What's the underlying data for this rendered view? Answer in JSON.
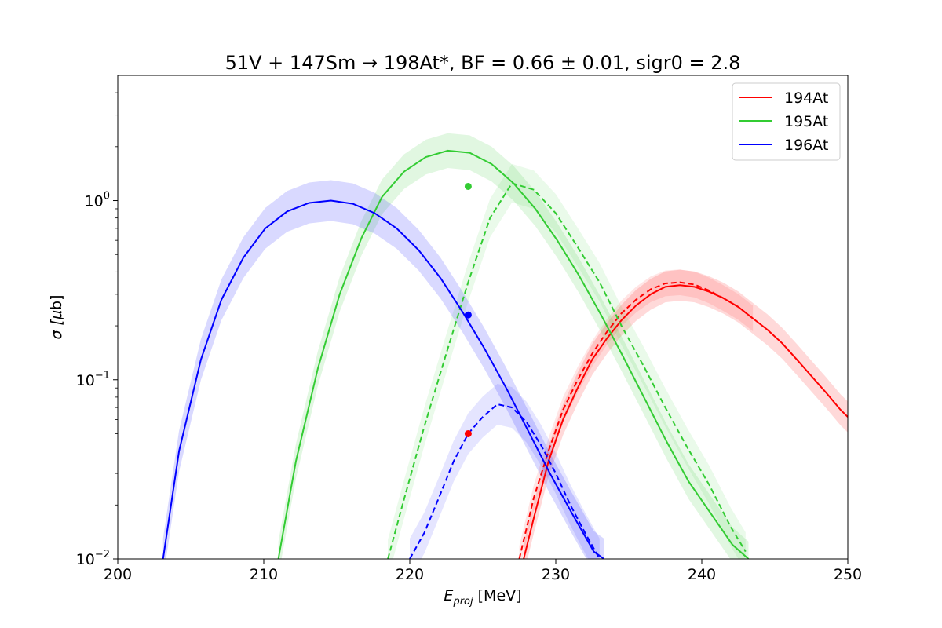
{
  "chart_data": {
    "type": "line",
    "title": "51V + 147Sm → 198At*, BF = 0.66 ± 0.01, sigr0 = 2.8",
    "xlabel_main": "E",
    "xlabel_sub": "proj",
    "xlabel_unit": " [MeV]",
    "ylabel_main": "σ [",
    "ylabel_mu": "μ",
    "ylabel_unit": "b]",
    "xlim": [
      200,
      250
    ],
    "ylim": [
      0.01,
      5
    ],
    "yscale": "log",
    "grid": false,
    "legend_position": "top-right",
    "x_ticks": [
      200,
      210,
      220,
      230,
      240,
      250
    ],
    "x_tick_labels": [
      "200",
      "210",
      "220",
      "230",
      "240",
      "250"
    ],
    "y_ticks": [
      {
        "value": 0.01,
        "base": "10",
        "exp": "−2"
      },
      {
        "value": 0.1,
        "base": "10",
        "exp": "−1"
      },
      {
        "value": 1,
        "base": "10",
        "exp": "0"
      }
    ],
    "series": [
      {
        "name": "194At",
        "color": "#ff0000",
        "solid": {
          "x": [
            227.8,
            228.5,
            229.5,
            230.5,
            231.5,
            232.5,
            233.5,
            234.5,
            235.5,
            236.5,
            237.5,
            238.5,
            239.5,
            240.5,
            241.5,
            242.5,
            243.5,
            244.5,
            245.5,
            246.5,
            247.5,
            248.5,
            249.5,
            250
          ],
          "y": [
            0.01,
            0.017,
            0.035,
            0.06,
            0.09,
            0.13,
            0.17,
            0.215,
            0.26,
            0.3,
            0.33,
            0.337,
            0.33,
            0.31,
            0.285,
            0.255,
            0.22,
            0.19,
            0.16,
            0.13,
            0.105,
            0.085,
            0.068,
            0.062
          ],
          "band_width": 1.22
        },
        "dashed": {
          "x": [
            227.5,
            228.5,
            229.5,
            230.5,
            231.5,
            232.5,
            233.5,
            234.5,
            235.5,
            236.5,
            237.5,
            238.5,
            239.5,
            240.5,
            241.5,
            242.5,
            243.5
          ],
          "y": [
            0.01,
            0.022,
            0.04,
            0.068,
            0.1,
            0.14,
            0.185,
            0.235,
            0.28,
            0.32,
            0.345,
            0.35,
            0.34,
            0.315,
            0.285,
            0.255,
            0.22
          ],
          "band_width": 1.18
        },
        "point": {
          "x": 224,
          "y": 0.05
        }
      },
      {
        "name": "195At",
        "color": "#33cc33",
        "solid": {
          "x": [
            211,
            212.2,
            213.7,
            215.2,
            216.7,
            218.1,
            219.6,
            221.1,
            222.6,
            224.1,
            225.6,
            227.1,
            228.6,
            230.1,
            231.6,
            233.1,
            234.6,
            236.1,
            237.6,
            239.1,
            240.6,
            242.1,
            243.2
          ],
          "y": [
            0.01,
            0.035,
            0.115,
            0.3,
            0.62,
            1.05,
            1.45,
            1.75,
            1.9,
            1.85,
            1.6,
            1.25,
            0.9,
            0.6,
            0.38,
            0.23,
            0.135,
            0.078,
            0.045,
            0.027,
            0.018,
            0.012,
            0.01
          ],
          "band_width": 1.25
        },
        "dashed": {
          "x": [
            218.5,
            219.5,
            221,
            222.5,
            224,
            225.5,
            227,
            228.5,
            230,
            231.5,
            233,
            234.5,
            236,
            237.5,
            239,
            240.5,
            242,
            243
          ],
          "y": [
            0.01,
            0.02,
            0.055,
            0.14,
            0.35,
            0.8,
            1.25,
            1.15,
            0.85,
            0.55,
            0.35,
            0.2,
            0.12,
            0.07,
            0.042,
            0.026,
            0.015,
            0.011
          ],
          "band_width": 1.28
        },
        "point": {
          "x": 224,
          "y": 1.2
        }
      },
      {
        "name": "196At",
        "color": "#0000ff",
        "solid": {
          "x": [
            203.1,
            204.2,
            205.7,
            207.1,
            208.6,
            210.1,
            211.6,
            213.1,
            214.6,
            216.1,
            217.6,
            219.1,
            220.6,
            222.1,
            223.6,
            225.1,
            226.6,
            228.1,
            229.6,
            231.1,
            232.6,
            233.3
          ],
          "y": [
            0.01,
            0.04,
            0.13,
            0.28,
            0.48,
            0.7,
            0.87,
            0.97,
            1.0,
            0.96,
            0.85,
            0.7,
            0.53,
            0.37,
            0.24,
            0.15,
            0.09,
            0.052,
            0.03,
            0.018,
            0.011,
            0.01
          ],
          "band_width": 1.3
        },
        "dashed": {
          "x": [
            220,
            221,
            222,
            223,
            224,
            225,
            226,
            227,
            228,
            229,
            230,
            231,
            232,
            233
          ],
          "y": [
            0.01,
            0.014,
            0.022,
            0.035,
            0.05,
            0.062,
            0.073,
            0.07,
            0.058,
            0.043,
            0.03,
            0.02,
            0.014,
            0.01
          ],
          "band_width": 1.3
        },
        "point": {
          "x": 224,
          "y": 0.23
        }
      }
    ]
  }
}
